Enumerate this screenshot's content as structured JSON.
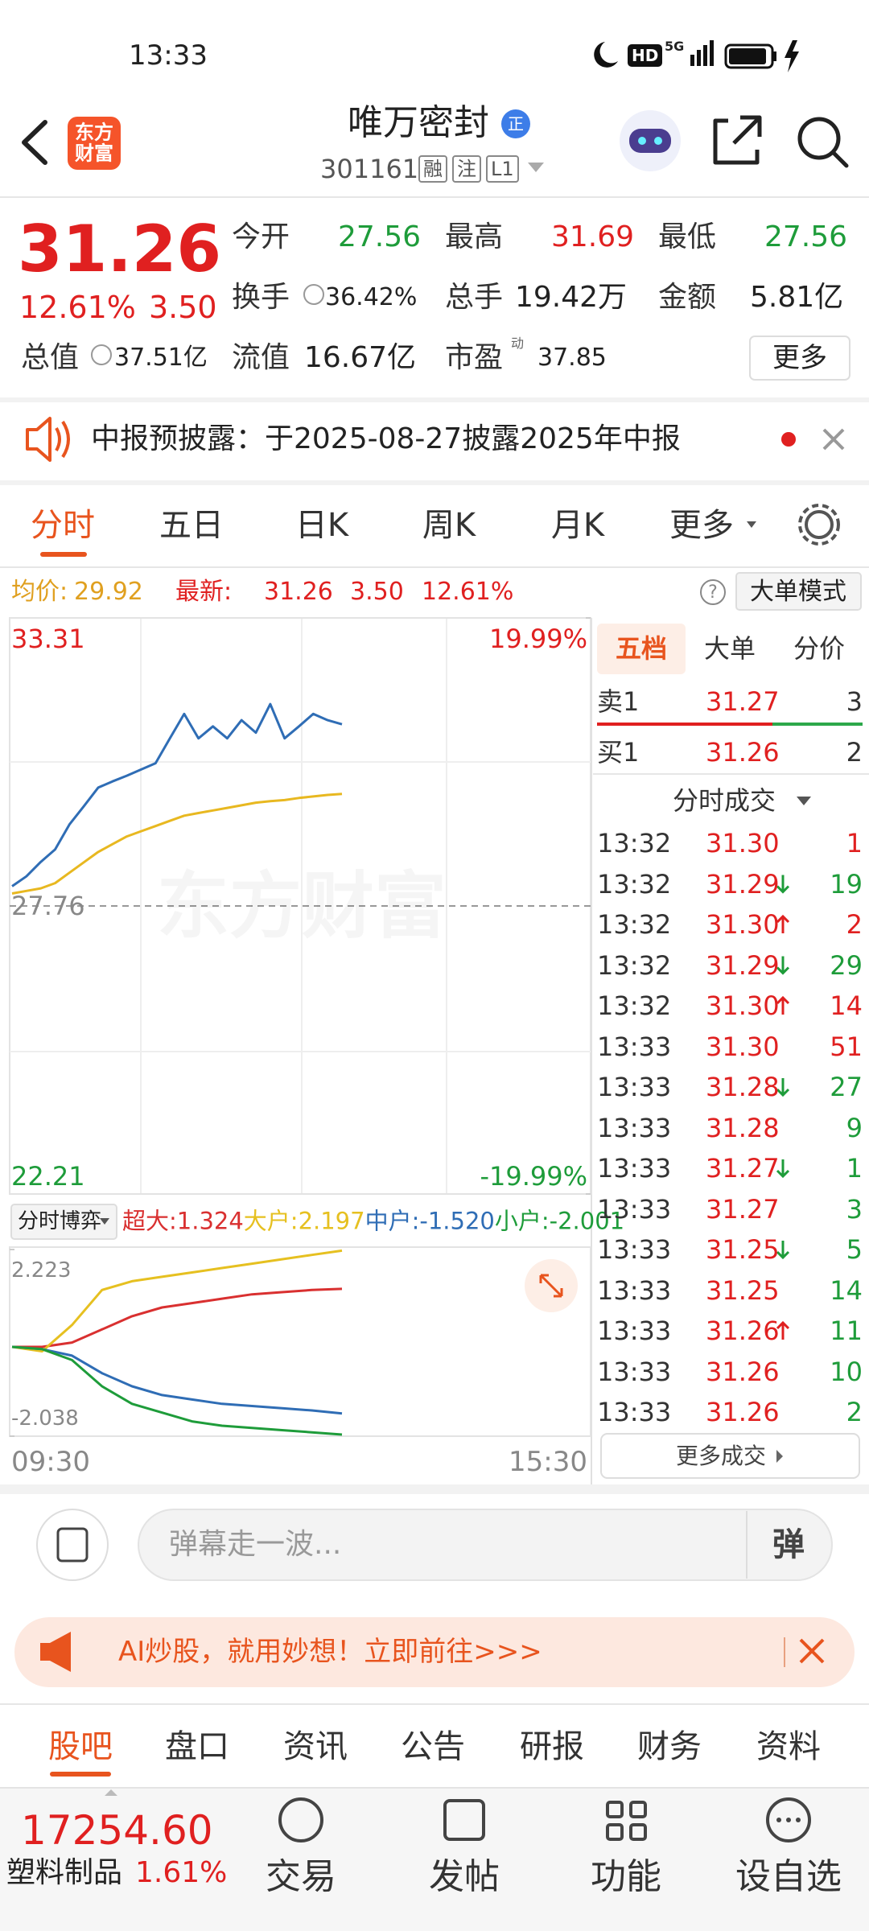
{
  "status_bar": {
    "time": "13:33",
    "hd": "HD",
    "net": "5G"
  },
  "header": {
    "logo": "东方财富",
    "title": "唯万密封",
    "badge": "正",
    "code": "301161",
    "tags": [
      "融",
      "注",
      "L1"
    ]
  },
  "quote": {
    "price": "31.26",
    "change_pct": "12.61%",
    "change": "3.50",
    "stats": [
      {
        "label": "今开",
        "value": "27.56"
      },
      {
        "label": "最高",
        "value": "31.69"
      },
      {
        "label": "最低",
        "value": "27.56"
      },
      {
        "label": "换手",
        "value": "36.42%"
      },
      {
        "label": "总手",
        "value": "19.42万"
      },
      {
        "label": "金额",
        "value": "5.81亿"
      },
      {
        "label": "总值",
        "value": "37.51亿"
      },
      {
        "label": "流值",
        "value": "16.67亿"
      },
      {
        "label": "市盈",
        "sup": "动",
        "value": "37.85"
      }
    ],
    "more": "更多"
  },
  "notice": "中报预披露：于2025-08-27披露2025年中报",
  "tabs": [
    "分时",
    "五日",
    "日K",
    "周K",
    "月K",
    "更多"
  ],
  "info": {
    "avg_label": "均价:",
    "avg": "29.92",
    "latest_label": "最新:",
    "latest": "31.26",
    "change": "3.50",
    "pct": "12.61%",
    "help": "?",
    "mode": "大单模式"
  },
  "chart_data": [
    {
      "type": "line",
      "watermark": "东方财富",
      "ylim": [
        22.21,
        33.31
      ],
      "yticks": [
        33.31,
        27.76,
        22.21
      ],
      "y2lim": [
        -19.99,
        19.99
      ],
      "y2ticks": [
        {
          "value": 19.99,
          "label": "19.99%"
        },
        {
          "value": -19.99,
          "label": "-19.99%"
        }
      ],
      "series": [
        {
          "name": "最新",
          "color": "#2f6db5",
          "values": [
            28.14,
            28.33,
            28.61,
            28.85,
            29.33,
            29.68,
            30.04,
            30.16,
            30.27,
            30.39,
            30.51,
            30.99,
            31.46,
            30.99,
            31.22,
            30.99,
            31.34,
            31.1,
            31.65,
            30.99,
            31.22,
            31.46,
            31.34,
            31.26
          ]
        },
        {
          "name": "均价",
          "color": "#e8b820",
          "values": [
            28.0,
            28.05,
            28.1,
            28.2,
            28.4,
            28.6,
            28.8,
            28.95,
            29.1,
            29.2,
            29.3,
            29.4,
            29.5,
            29.55,
            29.6,
            29.65,
            29.7,
            29.75,
            29.78,
            29.8,
            29.84,
            29.87,
            29.9,
            29.92
          ]
        }
      ]
    },
    {
      "type": "line",
      "title": "分时博弈",
      "ylim": [
        -2.038,
        2.223
      ],
      "yticks": [
        2.223,
        -2.038
      ],
      "x_labels": [
        "09:30",
        "15:30"
      ],
      "series": [
        {
          "name": "超大",
          "label": "超大:1.324",
          "color": "#d93030",
          "values": [
            0,
            0.0,
            0.1,
            0.4,
            0.7,
            0.9,
            1.0,
            1.1,
            1.2,
            1.25,
            1.3,
            1.324
          ]
        },
        {
          "name": "大户",
          "label": "大户:2.197",
          "color": "#e6c020",
          "values": [
            0,
            -0.1,
            0.5,
            1.3,
            1.5,
            1.6,
            1.7,
            1.8,
            1.9,
            2.0,
            2.1,
            2.197
          ]
        },
        {
          "name": "中户",
          "label": "中户:-1.520",
          "color": "#2f6db5",
          "values": [
            0,
            -0.05,
            -0.2,
            -0.6,
            -0.9,
            -1.1,
            -1.2,
            -1.3,
            -1.35,
            -1.4,
            -1.45,
            -1.52
          ]
        },
        {
          "name": "小户",
          "label": "小户:-2.001",
          "color": "#1e9c3a",
          "values": [
            0,
            -0.05,
            -0.3,
            -0.9,
            -1.3,
            -1.5,
            -1.7,
            -1.8,
            -1.85,
            -1.9,
            -1.95,
            -2.001
          ]
        }
      ]
    }
  ],
  "side_panel": {
    "tabs": [
      "五档",
      "大单",
      "分价"
    ],
    "ask": {
      "label": "卖1",
      "price": "31.27",
      "vol": "3"
    },
    "bid": {
      "label": "买1",
      "price": "31.26",
      "vol": "2"
    },
    "trades_title": "分时成交",
    "trades": [
      {
        "time": "13:32",
        "price": "31.30",
        "vol": "1",
        "dir": "none",
        "vol_color": "#e02020"
      },
      {
        "time": "13:32",
        "price": "31.29",
        "vol": "19",
        "dir": "down",
        "vol_color": "#1e9c3a"
      },
      {
        "time": "13:32",
        "price": "31.30",
        "vol": "2",
        "dir": "up",
        "vol_color": "#e02020"
      },
      {
        "time": "13:32",
        "price": "31.29",
        "vol": "29",
        "dir": "down",
        "vol_color": "#1e9c3a"
      },
      {
        "time": "13:32",
        "price": "31.30",
        "vol": "14",
        "dir": "up",
        "vol_color": "#e02020"
      },
      {
        "time": "13:33",
        "price": "31.30",
        "vol": "51",
        "dir": "none",
        "vol_color": "#e02020"
      },
      {
        "time": "13:33",
        "price": "31.28",
        "vol": "27",
        "dir": "down",
        "vol_color": "#1e9c3a"
      },
      {
        "time": "13:33",
        "price": "31.28",
        "vol": "9",
        "dir": "none",
        "vol_color": "#1e9c3a"
      },
      {
        "time": "13:33",
        "price": "31.27",
        "vol": "1",
        "dir": "down",
        "vol_color": "#1e9c3a"
      },
      {
        "time": "13:33",
        "price": "31.27",
        "vol": "3",
        "dir": "none",
        "vol_color": "#1e9c3a"
      },
      {
        "time": "13:33",
        "price": "31.25",
        "vol": "5",
        "dir": "down",
        "vol_color": "#1e9c3a"
      },
      {
        "time": "13:33",
        "price": "31.25",
        "vol": "14",
        "dir": "none",
        "vol_color": "#1e9c3a"
      },
      {
        "time": "13:33",
        "price": "31.26",
        "vol": "11",
        "dir": "up",
        "vol_color": "#1e9c3a"
      },
      {
        "time": "13:33",
        "price": "31.26",
        "vol": "10",
        "dir": "none",
        "vol_color": "#1e9c3a"
      },
      {
        "time": "13:33",
        "price": "31.26",
        "vol": "2",
        "dir": "none",
        "vol_color": "#1e9c3a"
      }
    ],
    "more": "更多成交"
  },
  "comment": {
    "placeholder": "弹幕走一波...",
    "button": "弹"
  },
  "banner": "AI炒股，就用妙想！立即前往>>>",
  "news_tabs": [
    "股吧",
    "盘口",
    "资讯",
    "公告",
    "研报",
    "财务",
    "资料"
  ],
  "bottom": {
    "index_value": "17254.60",
    "index_name": "塑料制品",
    "index_pct": "1.61%",
    "nav": [
      "交易",
      "发帖",
      "功能",
      "设自选"
    ]
  }
}
